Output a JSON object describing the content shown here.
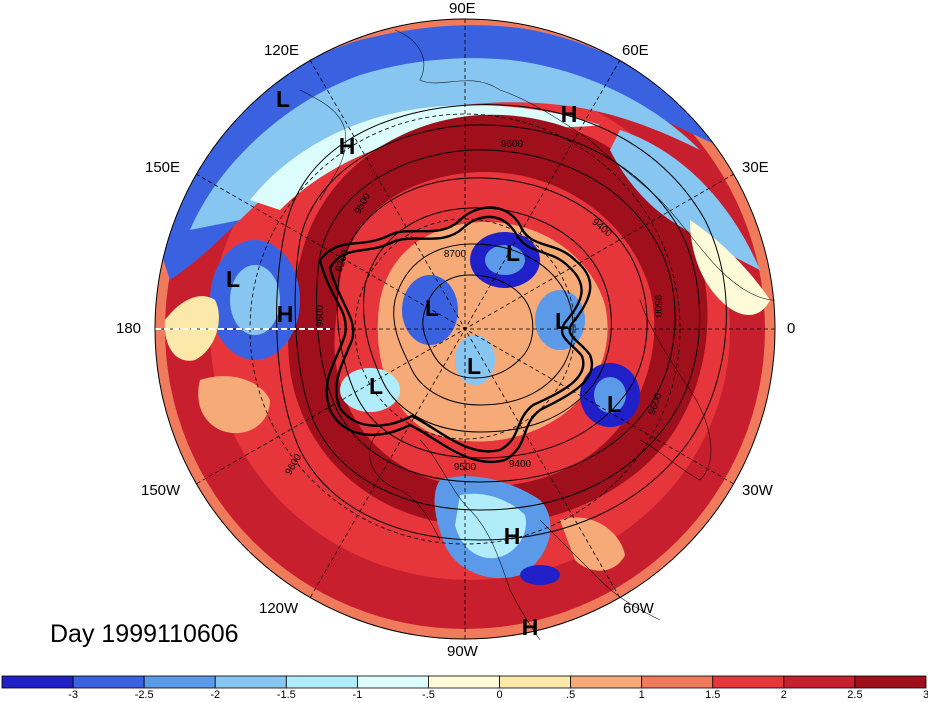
{
  "title": "Day 1999110606",
  "longitude_labels": {
    "lon_90e": "90E",
    "lon_120e": "120E",
    "lon_60e": "60E",
    "lon_150e": "150E",
    "lon_30e": "30E",
    "lon_180": "180",
    "lon_0": "0",
    "lon_150w": "150W",
    "lon_30w": "30W",
    "lon_120w": "120W",
    "lon_60w": "60W",
    "lon_90w": "90W"
  },
  "colorbar": {
    "colors": [
      "#2020c8",
      "#3a62e0",
      "#5a9ae8",
      "#86c6f0",
      "#b0ecfa",
      "#ddfcfc",
      "#fffbd8",
      "#fce8a8",
      "#f6aa78",
      "#f07b5c",
      "#e6353b",
      "#c81f2e",
      "#a0101c"
    ],
    "tick_labels": [
      "-3",
      "-2.5",
      "-2",
      "-1.5",
      "-1",
      "-.5",
      "0",
      ".5",
      "1",
      "1.5",
      "2",
      "2.5",
      "3"
    ]
  },
  "pressure_systems": [
    {
      "type": "L"
    },
    {
      "type": "H"
    },
    {
      "type": "H"
    },
    {
      "type": "L"
    },
    {
      "type": "H"
    },
    {
      "type": "L"
    },
    {
      "type": "L"
    },
    {
      "type": "L"
    },
    {
      "type": "L"
    },
    {
      "type": "L"
    },
    {
      "type": "L"
    },
    {
      "type": "H"
    },
    {
      "type": "H"
    }
  ],
  "contour_labels": [
    "9600",
    "9500",
    "9200",
    "8700",
    "9400",
    "9500",
    "9600",
    "9500",
    "9400",
    "9600",
    "9600"
  ]
}
